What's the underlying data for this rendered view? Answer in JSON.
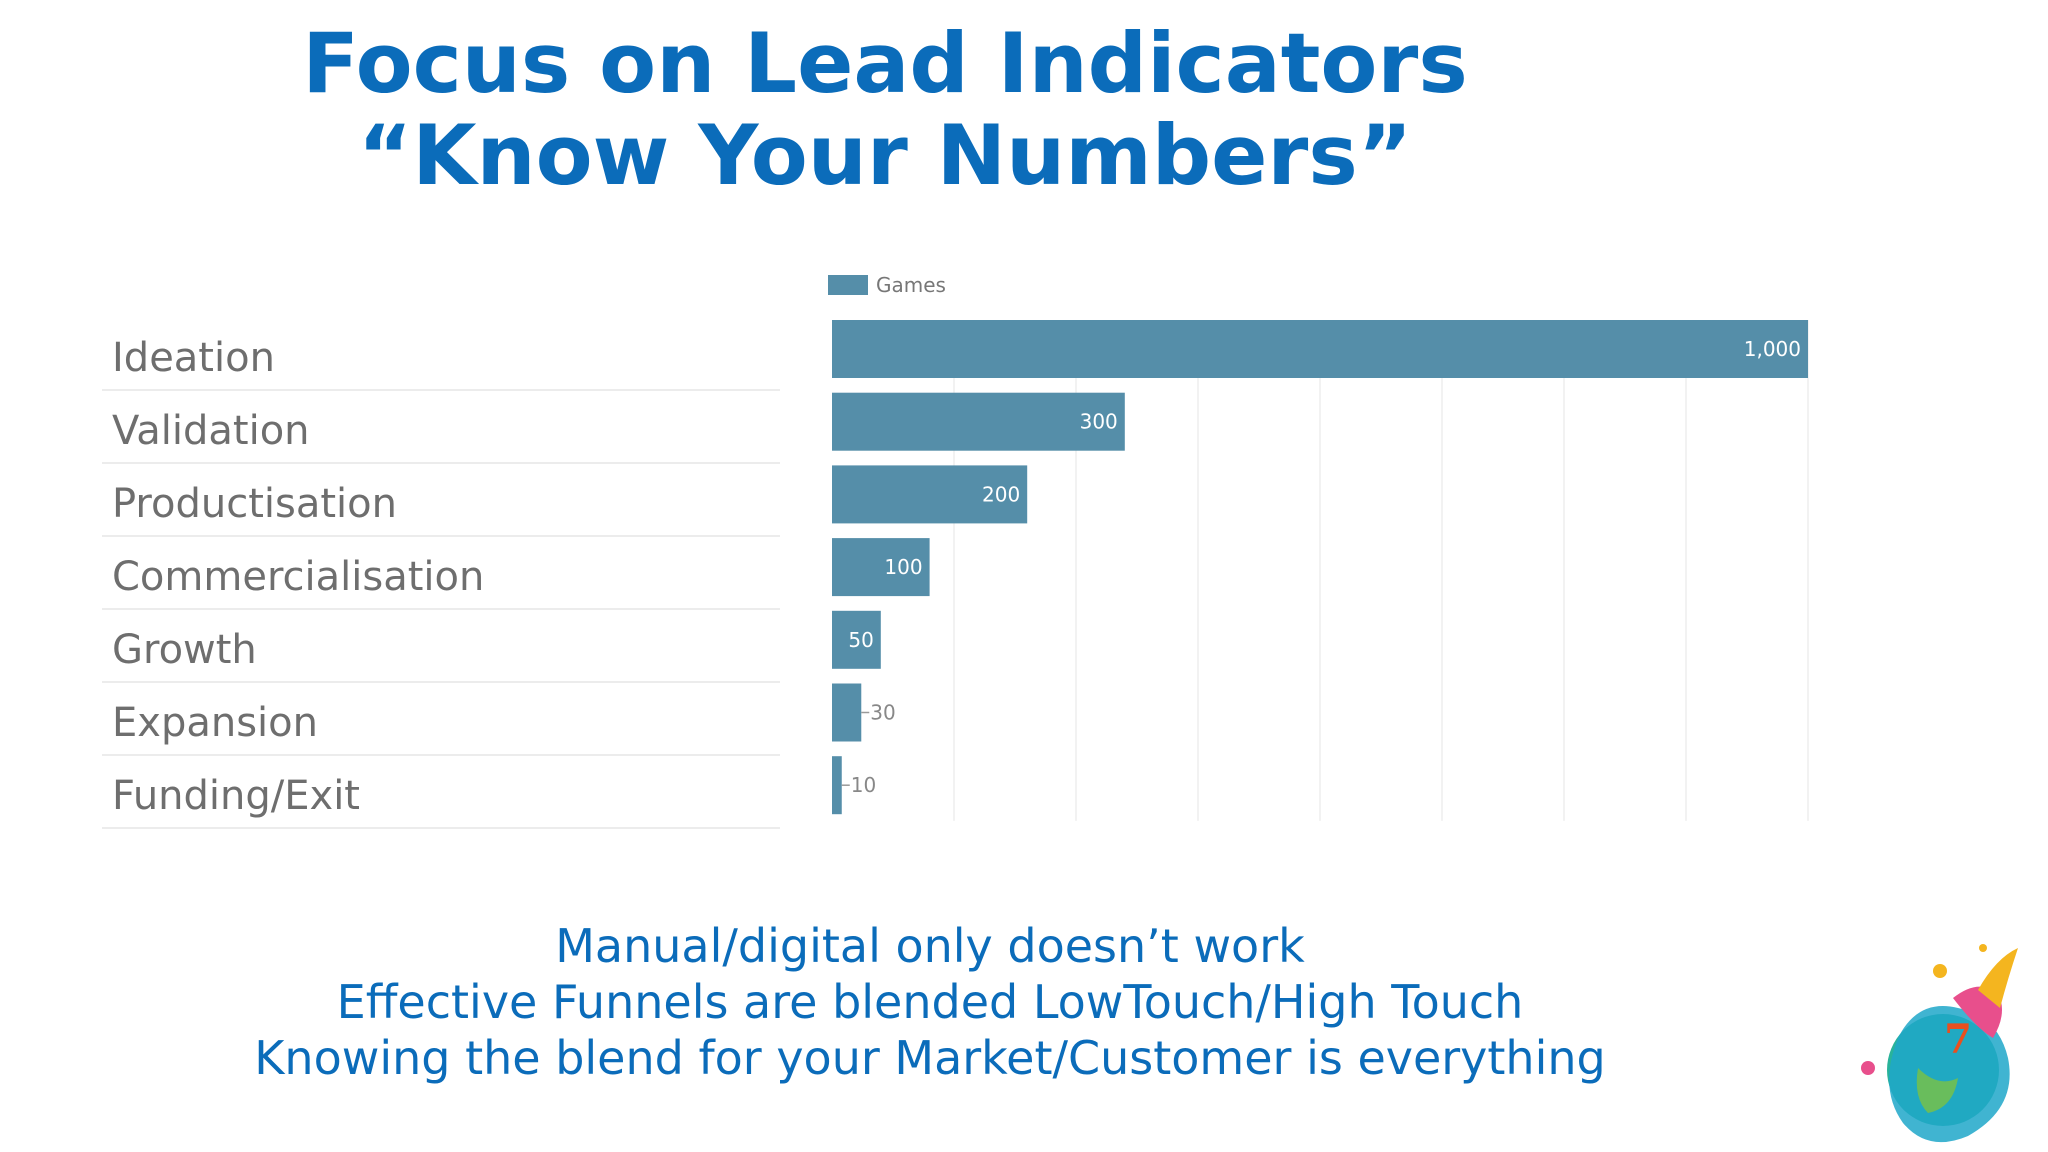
{
  "slide": {
    "title_line1": "Focus on Lead Indicators",
    "title_line2": "“Know Your Numbers”",
    "bottom_lines": [
      "Manual/digital only doesn’t work",
      "Effective Funnels are blended LowTouch/High Touch",
      "Knowing the blend for your Market/Customer is everything"
    ],
    "logo_icon": "seven-splash-logo-icon",
    "logo_text": "7"
  },
  "chart_data": {
    "type": "bar",
    "orientation": "horizontal",
    "categories": [
      "Ideation",
      "Validation",
      "Productisation",
      "Commercialisation",
      "Growth",
      "Expansion",
      "Funding/Exit"
    ],
    "series": [
      {
        "name": "Games",
        "values": [
          1000,
          300,
          200,
          100,
          50,
          30,
          10
        ],
        "labels": [
          "1,000",
          "300",
          "200",
          "100",
          "50",
          "30",
          "10"
        ]
      }
    ],
    "xlim": [
      0,
      1000
    ],
    "grid": true,
    "legend": "top-left",
    "bar_color": "#558ea9"
  }
}
